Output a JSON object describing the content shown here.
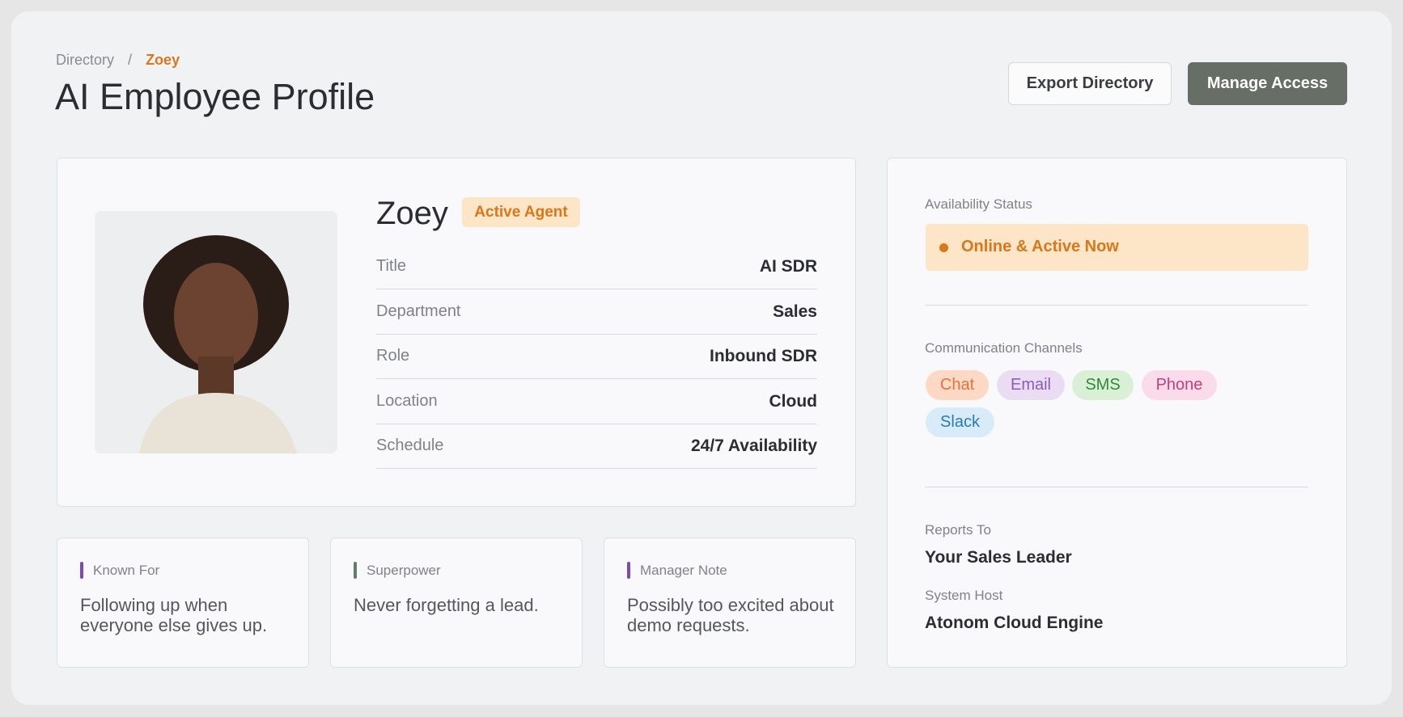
{
  "breadcrumb": {
    "parent": "Directory",
    "current": "Zoey"
  },
  "header": {
    "title": "AI Employee Profile",
    "buttons": [
      "Export Directory",
      "Manage Access"
    ]
  },
  "profile": {
    "name": "Zoey",
    "badge": "Active Agent",
    "fields": [
      {
        "label": "Title",
        "value": "AI SDR"
      },
      {
        "label": "Department",
        "value": "Sales"
      },
      {
        "label": "Role",
        "value": "Inbound SDR"
      },
      {
        "label": "Location",
        "value": "Cloud"
      },
      {
        "label": "Schedule",
        "value": "24/7 Availability"
      }
    ]
  },
  "notes": [
    {
      "label": "Known For",
      "text": "Following up when everyone else gives up."
    },
    {
      "label": "Superpower",
      "text": "Never forgetting a lead."
    },
    {
      "label": "Manager Note",
      "text": "Possibly too excited about demo requests."
    }
  ],
  "sidebar": {
    "availability_label": "Availability Status",
    "availability": "Online & Active Now",
    "channels_label": "Communication Channels",
    "channels": [
      "Chat",
      "Email",
      "SMS",
      "Phone",
      "Slack"
    ],
    "reports_to_label": "Reports To",
    "reports_to": "Your Sales Leader",
    "host_label": "System Host",
    "host": "Atonom Cloud Engine"
  }
}
